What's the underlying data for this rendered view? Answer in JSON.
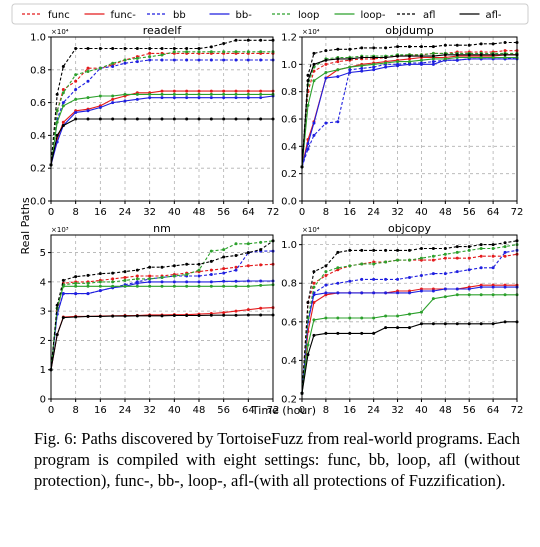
{
  "figure": {
    "ylabel": "Real Paths",
    "xlabel": "Time (hour)",
    "xticks": [
      0,
      8,
      16,
      24,
      32,
      40,
      48,
      56,
      64,
      72
    ],
    "legend": {
      "placement": "top",
      "entries": [
        {
          "name": "func",
          "color": "#e41a1c",
          "dash": true
        },
        {
          "name": "func-",
          "color": "#e41a1c",
          "dash": false
        },
        {
          "name": "bb",
          "color": "#1f1fdf",
          "dash": true
        },
        {
          "name": "bb-",
          "color": "#1f1fdf",
          "dash": false
        },
        {
          "name": "loop",
          "color": "#2ca02c",
          "dash": true
        },
        {
          "name": "loop-",
          "color": "#2ca02c",
          "dash": false
        },
        {
          "name": "afl",
          "color": "#000000",
          "dash": true
        },
        {
          "name": "afl-",
          "color": "#000000",
          "dash": false
        }
      ]
    }
  },
  "chart_data": [
    {
      "type": "line",
      "title": "readelf",
      "multiplier": "×10⁴",
      "ylim": [
        0,
        1.0
      ],
      "yticks": [
        "0.0",
        "0.2",
        "0.4",
        "0.6",
        "0.8",
        "1.0"
      ],
      "ytick_values": [
        0,
        0.2,
        0.4,
        0.6,
        0.8,
        1.0
      ],
      "xlim": [
        0,
        72
      ],
      "x": [
        0,
        2,
        4,
        8,
        12,
        16,
        20,
        24,
        28,
        32,
        36,
        40,
        44,
        48,
        52,
        56,
        60,
        64,
        68,
        72
      ],
      "series": [
        {
          "name": "func",
          "values": [
            0.22,
            0.55,
            0.68,
            0.73,
            0.81,
            0.81,
            0.83,
            0.86,
            0.88,
            0.9,
            0.9,
            0.9,
            0.9,
            0.9,
            0.9,
            0.9,
            0.9,
            0.9,
            0.9,
            0.9
          ]
        },
        {
          "name": "func-",
          "values": [
            0.22,
            0.38,
            0.48,
            0.55,
            0.56,
            0.58,
            0.62,
            0.64,
            0.66,
            0.66,
            0.67,
            0.67,
            0.67,
            0.67,
            0.67,
            0.67,
            0.67,
            0.67,
            0.67,
            0.67
          ]
        },
        {
          "name": "bb",
          "values": [
            0.22,
            0.5,
            0.6,
            0.68,
            0.73,
            0.81,
            0.82,
            0.84,
            0.85,
            0.86,
            0.86,
            0.86,
            0.86,
            0.86,
            0.86,
            0.86,
            0.86,
            0.86,
            0.86,
            0.86
          ]
        },
        {
          "name": "bb-",
          "values": [
            0.22,
            0.36,
            0.46,
            0.54,
            0.55,
            0.57,
            0.6,
            0.61,
            0.62,
            0.63,
            0.63,
            0.63,
            0.63,
            0.63,
            0.63,
            0.63,
            0.63,
            0.63,
            0.63,
            0.64
          ]
        },
        {
          "name": "loop",
          "values": [
            0.22,
            0.55,
            0.66,
            0.77,
            0.79,
            0.81,
            0.84,
            0.86,
            0.87,
            0.88,
            0.89,
            0.91,
            0.91,
            0.91,
            0.91,
            0.91,
            0.91,
            0.91,
            0.91,
            0.91
          ]
        },
        {
          "name": "loop-",
          "values": [
            0.22,
            0.48,
            0.58,
            0.62,
            0.63,
            0.64,
            0.64,
            0.65,
            0.65,
            0.65,
            0.65,
            0.65,
            0.65,
            0.65,
            0.65,
            0.65,
            0.65,
            0.65,
            0.65,
            0.65
          ]
        },
        {
          "name": "afl",
          "values": [
            0.22,
            0.65,
            0.82,
            0.93,
            0.93,
            0.93,
            0.93,
            0.93,
            0.93,
            0.93,
            0.93,
            0.93,
            0.93,
            0.93,
            0.94,
            0.96,
            0.98,
            0.98,
            0.98,
            0.98
          ]
        },
        {
          "name": "afl-",
          "values": [
            0.22,
            0.4,
            0.46,
            0.5,
            0.5,
            0.5,
            0.5,
            0.5,
            0.5,
            0.5,
            0.5,
            0.5,
            0.5,
            0.5,
            0.5,
            0.5,
            0.5,
            0.5,
            0.5,
            0.5
          ]
        }
      ]
    },
    {
      "type": "line",
      "title": "objdump",
      "multiplier": "×10⁴",
      "ylim": [
        0,
        1.2
      ],
      "yticks": [
        "0.0",
        "0.2",
        "0.4",
        "0.6",
        "0.8",
        "1.0",
        "1.2"
      ],
      "ytick_values": [
        0,
        0.2,
        0.4,
        0.6,
        0.8,
        1.0,
        1.2
      ],
      "xlim": [
        0,
        72
      ],
      "x": [
        0,
        2,
        4,
        8,
        12,
        16,
        20,
        24,
        28,
        32,
        36,
        40,
        44,
        48,
        52,
        56,
        60,
        64,
        68,
        72
      ],
      "series": [
        {
          "name": "func",
          "values": [
            0.25,
            0.8,
            0.95,
            1.0,
            1.02,
            1.03,
            1.04,
            1.04,
            1.05,
            1.06,
            1.07,
            1.07,
            1.08,
            1.08,
            1.09,
            1.09,
            1.09,
            1.09,
            1.1,
            1.1
          ]
        },
        {
          "name": "func-",
          "values": [
            0.25,
            0.45,
            0.58,
            0.9,
            0.96,
            0.98,
            1.0,
            1.01,
            1.02,
            1.03,
            1.04,
            1.05,
            1.05,
            1.05,
            1.06,
            1.06,
            1.06,
            1.06,
            1.07,
            1.07
          ]
        },
        {
          "name": "bb",
          "values": [
            0.25,
            0.38,
            0.48,
            0.57,
            0.58,
            0.96,
            0.97,
            0.98,
            1.0,
            1.0,
            1.01,
            1.01,
            1.02,
            1.03,
            1.03,
            1.04,
            1.04,
            1.04,
            1.04,
            1.05
          ]
        },
        {
          "name": "bb-",
          "values": [
            0.25,
            0.42,
            0.57,
            0.9,
            0.91,
            0.94,
            0.95,
            0.96,
            0.98,
            0.99,
            1.0,
            1.0,
            1.0,
            1.03,
            1.03,
            1.04,
            1.04,
            1.04,
            1.04,
            1.04
          ]
        },
        {
          "name": "loop",
          "values": [
            0.25,
            0.85,
            0.98,
            1.04,
            1.05,
            1.05,
            1.06,
            1.06,
            1.06,
            1.07,
            1.07,
            1.07,
            1.08,
            1.08,
            1.08,
            1.08,
            1.08,
            1.08,
            1.08,
            1.08
          ]
        },
        {
          "name": "loop-",
          "values": [
            0.25,
            0.7,
            0.88,
            0.94,
            0.96,
            0.98,
            0.99,
            1.0,
            1.01,
            1.02,
            1.02,
            1.03,
            1.04,
            1.04,
            1.05,
            1.05,
            1.05,
            1.05,
            1.05,
            1.05
          ]
        },
        {
          "name": "afl",
          "values": [
            0.25,
            0.92,
            1.08,
            1.1,
            1.11,
            1.11,
            1.12,
            1.12,
            1.12,
            1.13,
            1.13,
            1.13,
            1.13,
            1.14,
            1.14,
            1.14,
            1.15,
            1.15,
            1.16,
            1.16
          ]
        },
        {
          "name": "afl-",
          "values": [
            0.25,
            0.88,
            1.0,
            1.03,
            1.04,
            1.04,
            1.05,
            1.05,
            1.05,
            1.06,
            1.06,
            1.06,
            1.06,
            1.07,
            1.07,
            1.07,
            1.07,
            1.07,
            1.07,
            1.07
          ]
        }
      ]
    },
    {
      "type": "line",
      "title": "nm",
      "multiplier": "×10³",
      "ylim": [
        0,
        5.6
      ],
      "yticks": [
        "0",
        "1",
        "2",
        "3",
        "4",
        "5"
      ],
      "ytick_values": [
        0,
        1,
        2,
        3,
        4,
        5
      ],
      "xlim": [
        0,
        72
      ],
      "x": [
        0,
        2,
        4,
        8,
        12,
        16,
        20,
        24,
        28,
        32,
        36,
        40,
        44,
        48,
        52,
        56,
        60,
        64,
        68,
        72
      ],
      "series": [
        {
          "name": "func",
          "values": [
            1.0,
            3.0,
            3.95,
            4.0,
            4.0,
            4.05,
            4.1,
            4.15,
            4.2,
            4.2,
            4.2,
            4.25,
            4.3,
            4.35,
            4.4,
            4.45,
            4.5,
            4.55,
            4.58,
            4.6
          ]
        },
        {
          "name": "func-",
          "values": [
            1.0,
            2.2,
            2.8,
            2.82,
            2.82,
            2.83,
            2.84,
            2.85,
            2.85,
            2.87,
            2.87,
            2.88,
            2.88,
            2.9,
            2.92,
            2.95,
            3.0,
            3.05,
            3.1,
            3.12
          ]
        },
        {
          "name": "bb",
          "values": [
            1.0,
            2.9,
            3.6,
            3.6,
            3.6,
            3.7,
            3.8,
            3.9,
            4.0,
            4.1,
            4.15,
            4.2,
            4.2,
            4.2,
            4.25,
            4.3,
            4.4,
            5.0,
            5.05,
            5.05
          ]
        },
        {
          "name": "bb-",
          "values": [
            1.0,
            2.9,
            3.6,
            3.6,
            3.6,
            3.7,
            3.8,
            3.85,
            3.95,
            4.0,
            4.0,
            4.0,
            4.0,
            4.0,
            4.0,
            4.02,
            4.02,
            4.03,
            4.03,
            4.03
          ]
        },
        {
          "name": "loop",
          "values": [
            1.0,
            3.1,
            3.9,
            3.95,
            3.95,
            4.0,
            4.0,
            4.05,
            4.1,
            4.1,
            4.15,
            4.2,
            4.25,
            4.4,
            5.05,
            5.1,
            5.3,
            5.3,
            5.35,
            5.4
          ]
        },
        {
          "name": "loop-",
          "values": [
            1.0,
            3.1,
            3.85,
            3.85,
            3.85,
            3.85,
            3.85,
            3.85,
            3.85,
            3.85,
            3.85,
            3.85,
            3.85,
            3.85,
            3.85,
            3.85,
            3.85,
            3.85,
            3.88,
            3.9
          ]
        },
        {
          "name": "afl",
          "values": [
            1.0,
            3.2,
            4.05,
            4.18,
            4.22,
            4.28,
            4.3,
            4.35,
            4.4,
            4.5,
            4.5,
            4.55,
            4.6,
            4.6,
            4.7,
            4.85,
            4.9,
            5.0,
            5.1,
            5.4
          ]
        },
        {
          "name": "afl-",
          "values": [
            1.0,
            2.2,
            2.78,
            2.8,
            2.82,
            2.82,
            2.83,
            2.83,
            2.84,
            2.84,
            2.84,
            2.85,
            2.85,
            2.85,
            2.86,
            2.86,
            2.86,
            2.87,
            2.87,
            2.87
          ]
        }
      ]
    },
    {
      "type": "line",
      "title": "objcopy",
      "multiplier": "×10⁴",
      "ylim": [
        0.2,
        1.05
      ],
      "yticks": [
        "0.2",
        "0.4",
        "0.6",
        "0.8",
        "1.0"
      ],
      "ytick_values": [
        0.2,
        0.4,
        0.6,
        0.8,
        1.0
      ],
      "xlim": [
        0,
        72
      ],
      "x": [
        0,
        2,
        4,
        8,
        12,
        16,
        20,
        24,
        28,
        32,
        36,
        40,
        44,
        48,
        52,
        56,
        60,
        64,
        68,
        72
      ],
      "series": [
        {
          "name": "func",
          "values": [
            0.23,
            0.7,
            0.8,
            0.84,
            0.87,
            0.89,
            0.9,
            0.91,
            0.91,
            0.92,
            0.92,
            0.92,
            0.92,
            0.93,
            0.93,
            0.93,
            0.94,
            0.94,
            0.94,
            0.95
          ]
        },
        {
          "name": "func-",
          "values": [
            0.23,
            0.55,
            0.7,
            0.74,
            0.75,
            0.75,
            0.75,
            0.75,
            0.75,
            0.76,
            0.76,
            0.77,
            0.77,
            0.77,
            0.77,
            0.78,
            0.79,
            0.79,
            0.79,
            0.79
          ]
        },
        {
          "name": "bb",
          "values": [
            0.23,
            0.62,
            0.75,
            0.79,
            0.8,
            0.81,
            0.82,
            0.82,
            0.82,
            0.82,
            0.83,
            0.84,
            0.85,
            0.85,
            0.86,
            0.87,
            0.88,
            0.88,
            0.96,
            0.97
          ]
        },
        {
          "name": "bb-",
          "values": [
            0.23,
            0.6,
            0.74,
            0.75,
            0.75,
            0.75,
            0.75,
            0.75,
            0.75,
            0.75,
            0.75,
            0.76,
            0.76,
            0.77,
            0.77,
            0.77,
            0.78,
            0.78,
            0.78,
            0.78
          ]
        },
        {
          "name": "loop",
          "values": [
            0.23,
            0.62,
            0.78,
            0.86,
            0.88,
            0.89,
            0.9,
            0.9,
            0.91,
            0.92,
            0.92,
            0.93,
            0.94,
            0.95,
            0.96,
            0.97,
            0.98,
            0.98,
            0.99,
            1.0
          ]
        },
        {
          "name": "loop-",
          "values": [
            0.23,
            0.48,
            0.61,
            0.62,
            0.62,
            0.62,
            0.62,
            0.62,
            0.63,
            0.63,
            0.64,
            0.65,
            0.72,
            0.73,
            0.74,
            0.74,
            0.74,
            0.74,
            0.74,
            0.74
          ]
        },
        {
          "name": "afl",
          "values": [
            0.23,
            0.7,
            0.86,
            0.89,
            0.96,
            0.97,
            0.97,
            0.97,
            0.97,
            0.97,
            0.97,
            0.98,
            0.98,
            0.98,
            0.99,
            0.99,
            1.0,
            1.0,
            1.01,
            1.02
          ]
        },
        {
          "name": "afl-",
          "values": [
            0.23,
            0.43,
            0.53,
            0.54,
            0.54,
            0.54,
            0.54,
            0.54,
            0.57,
            0.57,
            0.57,
            0.59,
            0.59,
            0.59,
            0.59,
            0.59,
            0.59,
            0.59,
            0.6,
            0.6
          ]
        }
      ]
    }
  ],
  "caption": "Fig. 6: Paths discovered by TortoiseFuzz from real-world programs. Each program is compiled with eight settings: func, bb, loop, afl (without protection), func-, bb-, loop-, afl-(with all protections of Fuzzification)."
}
